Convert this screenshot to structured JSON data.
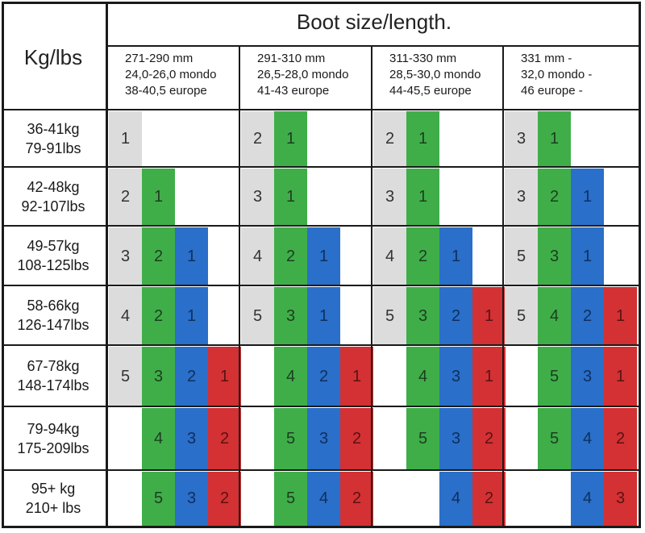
{
  "header": {
    "corner_label": "Kg/lbs",
    "title": "Boot size/length."
  },
  "boot_columns": [
    {
      "mm": "271-290 mm",
      "mondo": "24,0-26,0 mondo",
      "europe": "38-40,5 europe"
    },
    {
      "mm": "291-310 mm",
      "mondo": "26,5-28,0 mondo",
      "europe": "41-43 europe"
    },
    {
      "mm": "311-330 mm",
      "mondo": "28,5-30,0 mondo",
      "europe": "44-45,5 europe"
    },
    {
      "mm": "331 mm -",
      "mondo": "32,0 mondo -",
      "europe": "46 europe -"
    }
  ],
  "weight_rows": [
    {
      "kg": "36-41kg",
      "lbs": "79-91lbs"
    },
    {
      "kg": "42-48kg",
      "lbs": "92-107lbs"
    },
    {
      "kg": "49-57kg",
      "lbs": "108-125lbs"
    },
    {
      "kg": "58-66kg",
      "lbs": "126-147lbs"
    },
    {
      "kg": "67-78kg",
      "lbs": "148-174lbs"
    },
    {
      "kg": "79-94kg",
      "lbs": "175-209lbs"
    },
    {
      "kg": "95+ kg",
      "lbs": "210+ lbs"
    }
  ],
  "colors": {
    "grey": "#dcdcdc",
    "green": "#3fae49",
    "blue": "#2a6fc9",
    "red": "#d33133",
    "grid": "#1a1a1a"
  },
  "cells": [
    [
      [
        "g:1",
        "",
        "",
        ""
      ],
      [
        "g:2",
        "G:1",
        "",
        ""
      ],
      [
        "g:2",
        "G:1",
        "",
        ""
      ],
      [
        "g:3",
        "G:1",
        "",
        ""
      ]
    ],
    [
      [
        "g:2",
        "G:1",
        "",
        ""
      ],
      [
        "g:3",
        "G:1",
        "",
        ""
      ],
      [
        "g:3",
        "G:1",
        "",
        ""
      ],
      [
        "g:3",
        "G:2",
        "B:1",
        ""
      ]
    ],
    [
      [
        "g:3",
        "G:2",
        "B:1",
        ""
      ],
      [
        "g:4",
        "G:2",
        "B:1",
        ""
      ],
      [
        "g:4",
        "G:2",
        "B:1",
        ""
      ],
      [
        "g:5",
        "G:3",
        "B:1",
        ""
      ]
    ],
    [
      [
        "g:4",
        "G:2",
        "B:1",
        ""
      ],
      [
        "g:5",
        "G:3",
        "B:1",
        ""
      ],
      [
        "g:5",
        "G:3",
        "B:2",
        "R:1"
      ],
      [
        "g:5",
        "G:4",
        "B:2",
        "R:1"
      ]
    ],
    [
      [
        "g:5",
        "G:3",
        "B:2",
        "R:1"
      ],
      [
        "",
        "G:4",
        "B:2",
        "R:1"
      ],
      [
        "",
        "G:4",
        "B:3",
        "R:1"
      ],
      [
        "",
        "G:5",
        "B:3",
        "R:1"
      ]
    ],
    [
      [
        "",
        "G:4",
        "B:3",
        "R:2"
      ],
      [
        "",
        "G:5",
        "B:3",
        "R:2"
      ],
      [
        "",
        "G:5",
        "B:3",
        "R:2"
      ],
      [
        "",
        "G:5",
        "B:4",
        "R:2"
      ]
    ],
    [
      [
        "",
        "G:5",
        "B:3",
        "R:2"
      ],
      [
        "",
        "G:5",
        "B:4",
        "R:2"
      ],
      [
        "",
        "",
        "B:4",
        "R:2"
      ],
      [
        "",
        "",
        "B:4",
        "R:3"
      ]
    ]
  ]
}
